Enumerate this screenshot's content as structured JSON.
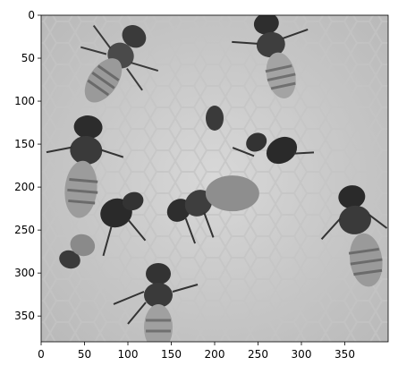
{
  "image": {
    "description_kind": "grayscale microscopy-like image of honeybees on honeycomb",
    "colormap": "gray"
  },
  "axes": {
    "xlim": [
      0,
      400
    ],
    "ylim": [
      380,
      0
    ],
    "xticks": [
      0,
      50,
      100,
      150,
      200,
      250,
      300,
      350
    ],
    "yticks": [
      0,
      50,
      100,
      150,
      200,
      250,
      300,
      350
    ],
    "xtick_labels": [
      "0",
      "50",
      "100",
      "150",
      "200",
      "250",
      "300",
      "350"
    ],
    "ytick_labels": [
      "0",
      "50",
      "100",
      "150",
      "200",
      "250",
      "300",
      "350"
    ]
  }
}
